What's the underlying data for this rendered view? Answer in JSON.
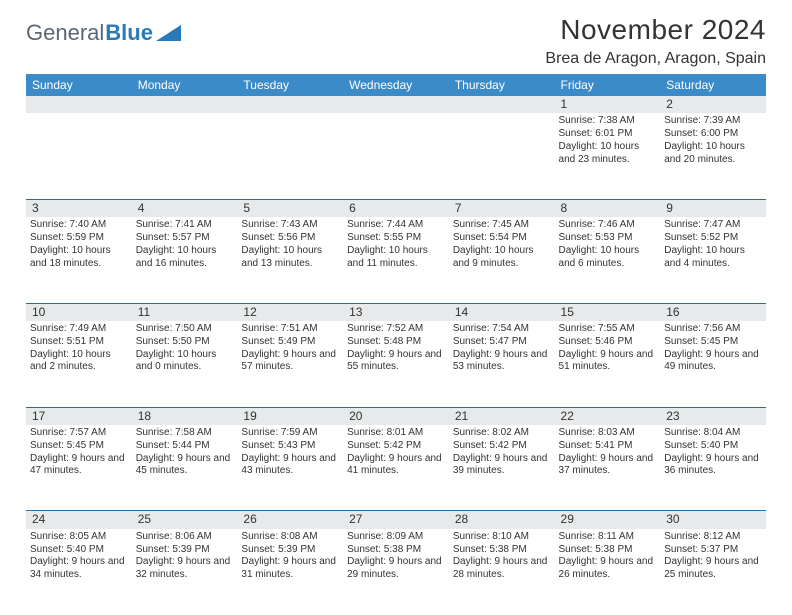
{
  "brand": {
    "part1": "General",
    "part2": "Blue",
    "color_text": "#5d6770",
    "color_accent": "#2a7ab9"
  },
  "title": "November 2024",
  "location": "Brea de Aragon, Aragon, Spain",
  "header_bg": "#3b8bc8",
  "border_color": "#2a6ea3",
  "daynum_bg": "#e8e9ea",
  "day_headers": [
    "Sunday",
    "Monday",
    "Tuesday",
    "Wednesday",
    "Thursday",
    "Friday",
    "Saturday"
  ],
  "weeks": [
    [
      null,
      null,
      null,
      null,
      null,
      {
        "n": "1",
        "sr": "7:38 AM",
        "ss": "6:01 PM",
        "dl": "10 hours and 23 minutes."
      },
      {
        "n": "2",
        "sr": "7:39 AM",
        "ss": "6:00 PM",
        "dl": "10 hours and 20 minutes."
      }
    ],
    [
      {
        "n": "3",
        "sr": "7:40 AM",
        "ss": "5:59 PM",
        "dl": "10 hours and 18 minutes."
      },
      {
        "n": "4",
        "sr": "7:41 AM",
        "ss": "5:57 PM",
        "dl": "10 hours and 16 minutes."
      },
      {
        "n": "5",
        "sr": "7:43 AM",
        "ss": "5:56 PM",
        "dl": "10 hours and 13 minutes."
      },
      {
        "n": "6",
        "sr": "7:44 AM",
        "ss": "5:55 PM",
        "dl": "10 hours and 11 minutes."
      },
      {
        "n": "7",
        "sr": "7:45 AM",
        "ss": "5:54 PM",
        "dl": "10 hours and 9 minutes."
      },
      {
        "n": "8",
        "sr": "7:46 AM",
        "ss": "5:53 PM",
        "dl": "10 hours and 6 minutes."
      },
      {
        "n": "9",
        "sr": "7:47 AM",
        "ss": "5:52 PM",
        "dl": "10 hours and 4 minutes."
      }
    ],
    [
      {
        "n": "10",
        "sr": "7:49 AM",
        "ss": "5:51 PM",
        "dl": "10 hours and 2 minutes."
      },
      {
        "n": "11",
        "sr": "7:50 AM",
        "ss": "5:50 PM",
        "dl": "10 hours and 0 minutes."
      },
      {
        "n": "12",
        "sr": "7:51 AM",
        "ss": "5:49 PM",
        "dl": "9 hours and 57 minutes."
      },
      {
        "n": "13",
        "sr": "7:52 AM",
        "ss": "5:48 PM",
        "dl": "9 hours and 55 minutes."
      },
      {
        "n": "14",
        "sr": "7:54 AM",
        "ss": "5:47 PM",
        "dl": "9 hours and 53 minutes."
      },
      {
        "n": "15",
        "sr": "7:55 AM",
        "ss": "5:46 PM",
        "dl": "9 hours and 51 minutes."
      },
      {
        "n": "16",
        "sr": "7:56 AM",
        "ss": "5:45 PM",
        "dl": "9 hours and 49 minutes."
      }
    ],
    [
      {
        "n": "17",
        "sr": "7:57 AM",
        "ss": "5:45 PM",
        "dl": "9 hours and 47 minutes."
      },
      {
        "n": "18",
        "sr": "7:58 AM",
        "ss": "5:44 PM",
        "dl": "9 hours and 45 minutes."
      },
      {
        "n": "19",
        "sr": "7:59 AM",
        "ss": "5:43 PM",
        "dl": "9 hours and 43 minutes."
      },
      {
        "n": "20",
        "sr": "8:01 AM",
        "ss": "5:42 PM",
        "dl": "9 hours and 41 minutes."
      },
      {
        "n": "21",
        "sr": "8:02 AM",
        "ss": "5:42 PM",
        "dl": "9 hours and 39 minutes."
      },
      {
        "n": "22",
        "sr": "8:03 AM",
        "ss": "5:41 PM",
        "dl": "9 hours and 37 minutes."
      },
      {
        "n": "23",
        "sr": "8:04 AM",
        "ss": "5:40 PM",
        "dl": "9 hours and 36 minutes."
      }
    ],
    [
      {
        "n": "24",
        "sr": "8:05 AM",
        "ss": "5:40 PM",
        "dl": "9 hours and 34 minutes."
      },
      {
        "n": "25",
        "sr": "8:06 AM",
        "ss": "5:39 PM",
        "dl": "9 hours and 32 minutes."
      },
      {
        "n": "26",
        "sr": "8:08 AM",
        "ss": "5:39 PM",
        "dl": "9 hours and 31 minutes."
      },
      {
        "n": "27",
        "sr": "8:09 AM",
        "ss": "5:38 PM",
        "dl": "9 hours and 29 minutes."
      },
      {
        "n": "28",
        "sr": "8:10 AM",
        "ss": "5:38 PM",
        "dl": "9 hours and 28 minutes."
      },
      {
        "n": "29",
        "sr": "8:11 AM",
        "ss": "5:38 PM",
        "dl": "9 hours and 26 minutes."
      },
      {
        "n": "30",
        "sr": "8:12 AM",
        "ss": "5:37 PM",
        "dl": "9 hours and 25 minutes."
      }
    ]
  ],
  "labels": {
    "sunrise": "Sunrise:",
    "sunset": "Sunset:",
    "daylight": "Daylight:"
  }
}
